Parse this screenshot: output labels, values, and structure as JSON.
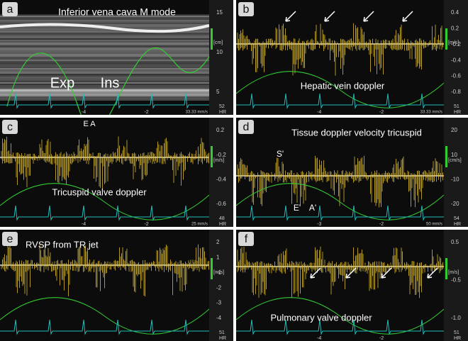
{
  "panels": [
    {
      "letter": "a",
      "caption": "Inferior vena cava M mode",
      "annotations": [
        "Exp",
        "Ins"
      ],
      "unit": "[cm]",
      "y_ticks": [
        "15",
        "10",
        "5"
      ],
      "x_ticks": [
        "-4",
        "-2"
      ],
      "heart_rate": "52",
      "hr_label": "HR",
      "sweep": "33.33 mm/s"
    },
    {
      "letter": "b",
      "caption": "Hepatic vein doppler",
      "annotations": [],
      "unit": "[m/s]",
      "y_ticks": [
        "0.4",
        "0.2",
        "-0.2",
        "-0.4",
        "-0.6",
        "-0.8"
      ],
      "x_ticks": [
        "-4",
        "-2"
      ],
      "heart_rate": "51",
      "hr_label": "HR",
      "sweep": "33.33 mm/s"
    },
    {
      "letter": "c",
      "caption": "Tricuspid valve doppler",
      "annotations": [
        "E A"
      ],
      "unit": "[m/s]",
      "y_ticks": [
        "0.2",
        "-0.2",
        "-0.4",
        "-0.6"
      ],
      "x_ticks": [
        "-4",
        "-2"
      ],
      "heart_rate": "48",
      "hr_label": "HR",
      "sweep": "25 mm/s"
    },
    {
      "letter": "d",
      "caption": "Tissue doppler velocity tricuspid",
      "annotations": [
        "S'",
        "E'",
        "A'"
      ],
      "unit": "[cm/s]",
      "y_ticks": [
        "20",
        "10",
        "-10",
        "-20"
      ],
      "x_ticks": [
        "-3",
        "-2"
      ],
      "heart_rate": "54",
      "hr_label": "HR",
      "sweep": "50 mm/s"
    },
    {
      "letter": "e",
      "caption": "RVSP from TR jet",
      "annotations": [],
      "unit": "[m/s]",
      "y_ticks": [
        "2",
        "1",
        "-1",
        "-2",
        "-3",
        "-4"
      ],
      "x_ticks": [],
      "heart_rate": "51",
      "hr_label": "HR",
      "sweep": ""
    },
    {
      "letter": "f",
      "caption": "Pulmonary valve doppler",
      "annotations": [],
      "unit": "[m/s]",
      "y_ticks": [
        "0.5",
        "-0.5",
        "-1.0"
      ],
      "x_ticks": [
        "-4",
        "-2"
      ],
      "heart_rate": "51",
      "hr_label": "HR",
      "sweep": ""
    }
  ]
}
